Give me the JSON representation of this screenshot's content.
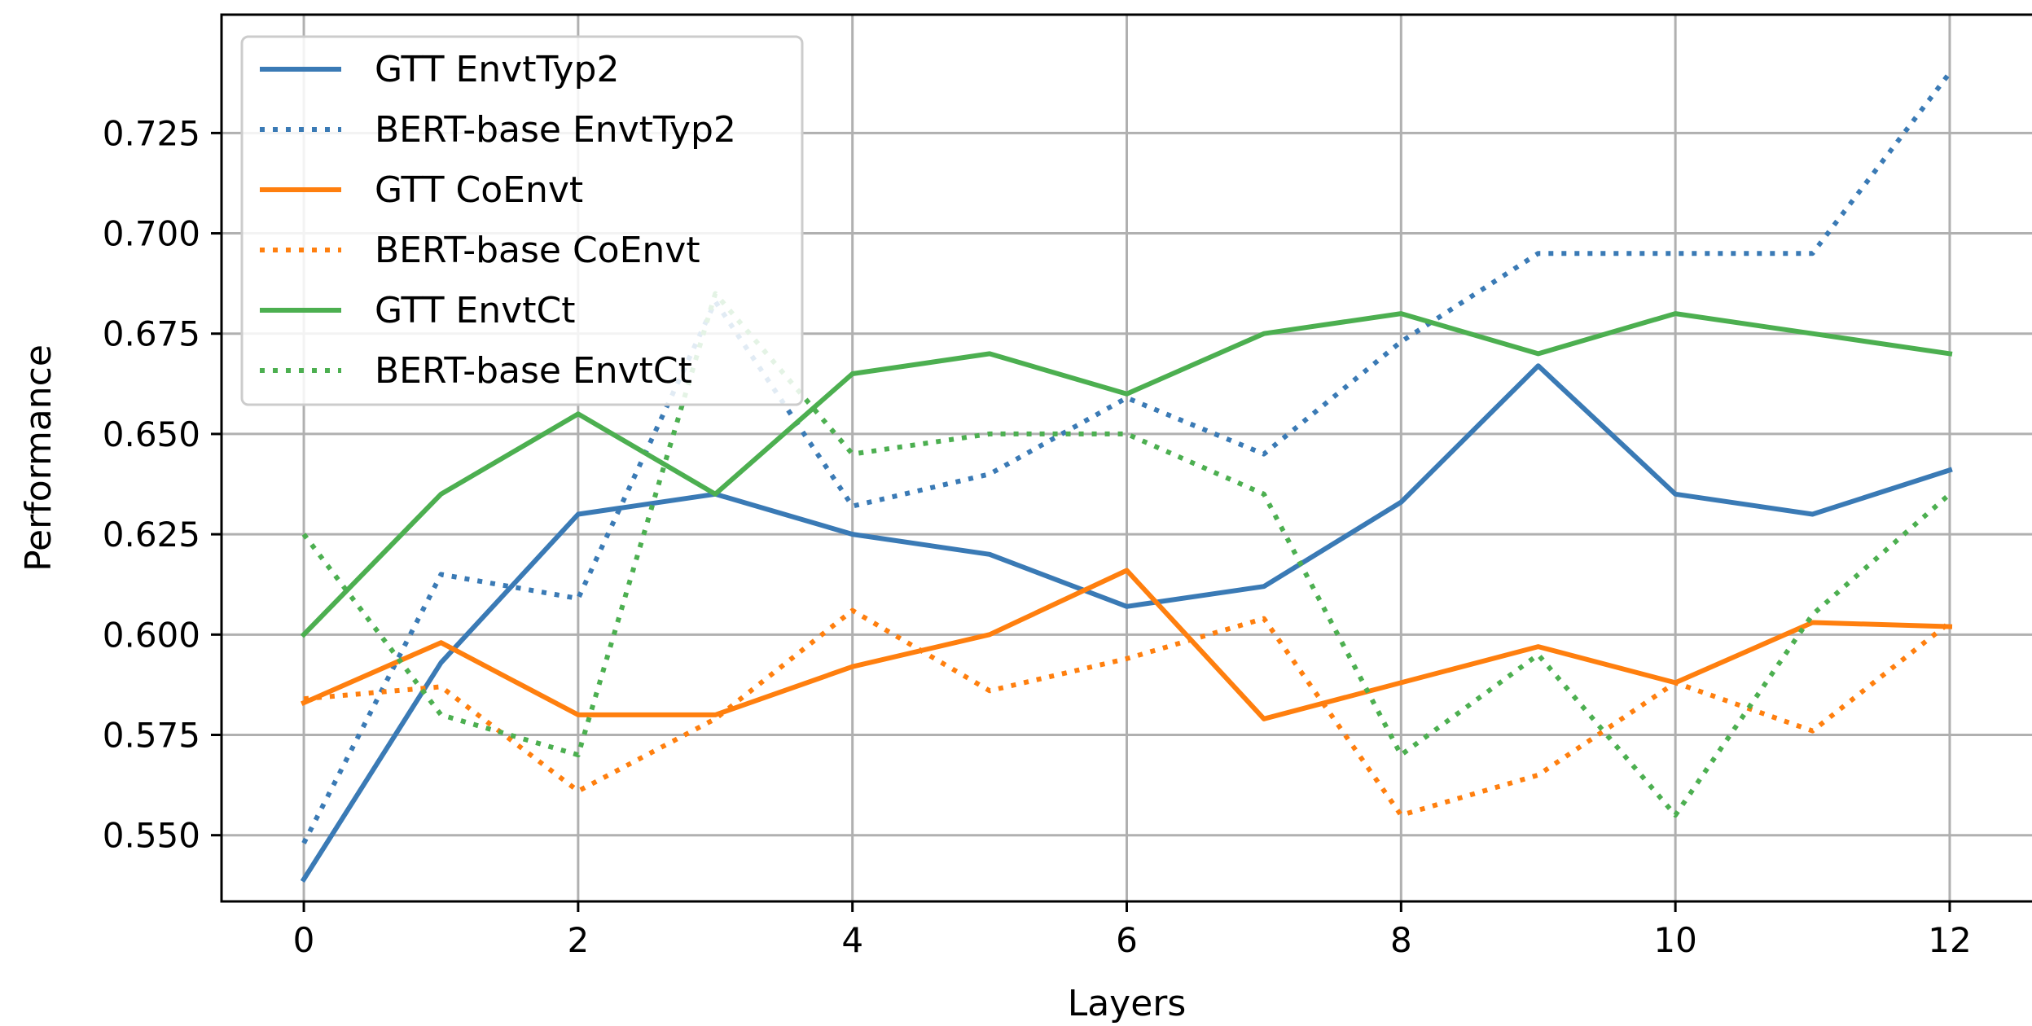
{
  "chart_data": {
    "type": "line",
    "title": "",
    "xlabel": "Layers",
    "ylabel": "Performance",
    "x": [
      0,
      1,
      2,
      3,
      4,
      5,
      6,
      7,
      8,
      9,
      10,
      11,
      12
    ],
    "xlim": [
      -0.6,
      12.6
    ],
    "ylim": [
      0.5335,
      0.7545
    ],
    "xticks": [
      0,
      2,
      4,
      6,
      8,
      10,
      12
    ],
    "xtick_labels": [
      "0",
      "2",
      "4",
      "6",
      "8",
      "10",
      "12"
    ],
    "yticks": [
      0.55,
      0.575,
      0.6,
      0.625,
      0.65,
      0.675,
      0.7,
      0.725
    ],
    "ytick_labels": [
      "0.550",
      "0.575",
      "0.600",
      "0.625",
      "0.650",
      "0.675",
      "0.700",
      "0.725"
    ],
    "grid": true,
    "legend_position": "top-left",
    "series": [
      {
        "name": "GTT EnvtTyp2",
        "color": "#3a7ab5",
        "style": "solid",
        "values": [
          0.539,
          0.593,
          0.63,
          0.635,
          0.625,
          0.62,
          0.607,
          0.612,
          0.633,
          0.667,
          0.635,
          0.63,
          0.641
        ]
      },
      {
        "name": "BERT-base EnvtTyp2",
        "color": "#3a7ab5",
        "style": "dotted",
        "values": [
          0.548,
          0.615,
          0.609,
          0.683,
          0.632,
          0.64,
          0.659,
          0.645,
          0.673,
          0.695,
          0.695,
          0.695,
          0.74
        ]
      },
      {
        "name": "GTT CoEnvt",
        "color": "#ff7f0e",
        "style": "solid",
        "values": [
          0.583,
          0.598,
          0.58,
          0.58,
          0.592,
          0.6,
          0.616,
          0.579,
          0.588,
          0.597,
          0.588,
          0.603,
          0.602
        ]
      },
      {
        "name": "BERT-base CoEnvt",
        "color": "#ff7f0e",
        "style": "dotted",
        "values": [
          0.584,
          0.587,
          0.561,
          0.579,
          0.606,
          0.586,
          0.594,
          0.604,
          0.555,
          0.565,
          0.588,
          0.576,
          0.603
        ]
      },
      {
        "name": "GTT EnvtCt",
        "color": "#4caf50",
        "style": "solid",
        "values": [
          0.6,
          0.635,
          0.655,
          0.635,
          0.665,
          0.67,
          0.66,
          0.675,
          0.68,
          0.67,
          0.68,
          0.675,
          0.67
        ]
      },
      {
        "name": "BERT-base EnvtCt",
        "color": "#4caf50",
        "style": "dotted",
        "values": [
          0.625,
          0.58,
          0.57,
          0.685,
          0.645,
          0.65,
          0.65,
          0.635,
          0.57,
          0.595,
          0.555,
          0.605,
          0.635
        ]
      }
    ]
  }
}
